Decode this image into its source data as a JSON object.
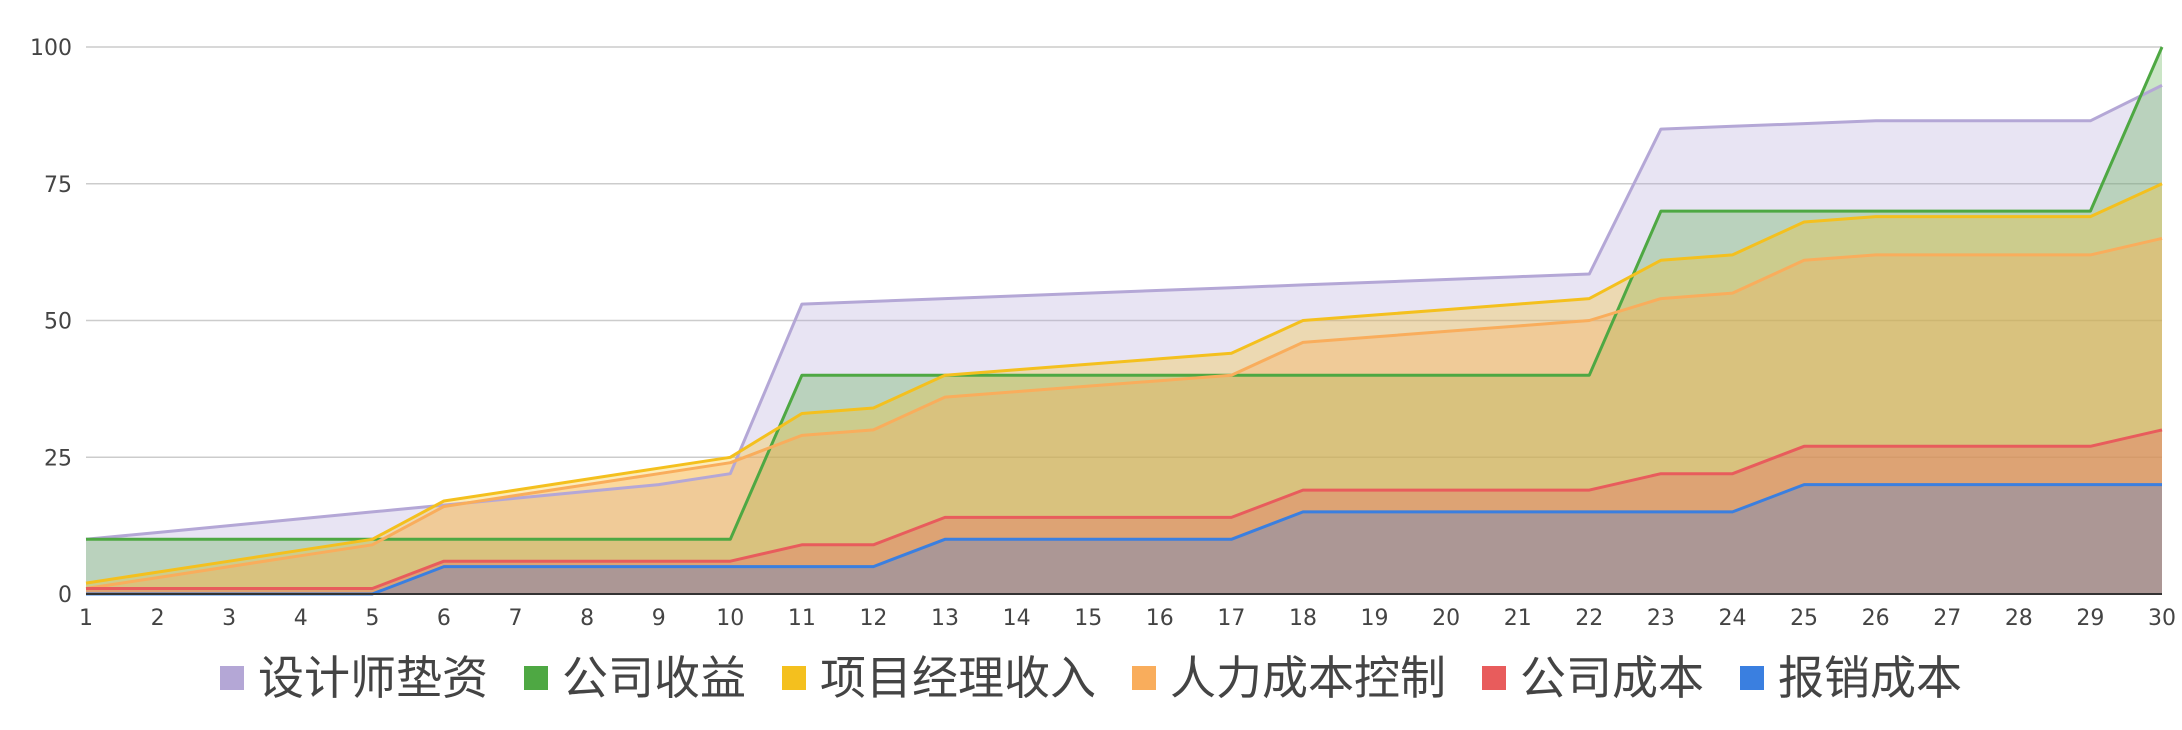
{
  "chart_data": {
    "type": "area",
    "stacked": false,
    "title": "",
    "xlabel": "",
    "ylabel": "",
    "x": [
      1,
      2,
      3,
      4,
      5,
      6,
      7,
      8,
      9,
      10,
      11,
      12,
      13,
      14,
      15,
      16,
      17,
      18,
      19,
      20,
      21,
      22,
      23,
      24,
      25,
      26,
      27,
      28,
      29,
      30
    ],
    "xlim": [
      1,
      30
    ],
    "ylim": [
      0,
      100
    ],
    "yticks": [
      0,
      25,
      50,
      75,
      100
    ],
    "grid": true,
    "legend_position": "bottom",
    "series": [
      {
        "name": "设计师垫资",
        "color": "#b4a7d6",
        "values": [
          10,
          11.25,
          12.5,
          13.75,
          15,
          16.25,
          17.5,
          18.75,
          20,
          22,
          53,
          53.5,
          54,
          54.5,
          55,
          55.5,
          56,
          56.5,
          57,
          57.5,
          58,
          58.5,
          85,
          85.5,
          86,
          86.5,
          86.5,
          86.5,
          86.5,
          93
        ]
      },
      {
        "name": "公司收益",
        "color": "#4ea843",
        "values": [
          10,
          10,
          10,
          10,
          10,
          10,
          10,
          10,
          10,
          10,
          40,
          40,
          40,
          40,
          40,
          40,
          40,
          40,
          40,
          40,
          40,
          40,
          70,
          70,
          70,
          70,
          70,
          70,
          70,
          100
        ]
      },
      {
        "name": "项目经理收入",
        "color": "#f4c01e",
        "values": [
          2,
          4,
          6,
          8,
          10,
          17,
          19,
          21,
          23,
          25,
          33,
          34,
          40,
          41,
          42,
          43,
          44,
          50,
          51,
          52,
          53,
          54,
          61,
          62,
          68,
          69,
          69,
          69,
          69,
          75
        ]
      },
      {
        "name": "人力成本控制",
        "color": "#f9ad5c",
        "values": [
          1,
          3,
          5,
          7,
          9,
          16,
          18,
          20,
          22,
          24,
          29,
          30,
          36,
          37,
          38,
          39,
          40,
          46,
          47,
          48,
          49,
          50,
          54,
          55,
          61,
          62,
          62,
          62,
          62,
          65
        ]
      },
      {
        "name": "公司成本",
        "color": "#e85c5c",
        "values": [
          1,
          1,
          1,
          1,
          1,
          6,
          6,
          6,
          6,
          6,
          9,
          9,
          14,
          14,
          14,
          14,
          14,
          19,
          19,
          19,
          19,
          19,
          22,
          22,
          27,
          27,
          27,
          27,
          27,
          30
        ]
      },
      {
        "name": "报销成本",
        "color": "#3a7fe0",
        "values": [
          0,
          0,
          0,
          0,
          0,
          5,
          5,
          5,
          5,
          5,
          5,
          5,
          10,
          10,
          10,
          10,
          10,
          15,
          15,
          15,
          15,
          15,
          15,
          15,
          20,
          20,
          20,
          20,
          20,
          20
        ]
      }
    ]
  }
}
